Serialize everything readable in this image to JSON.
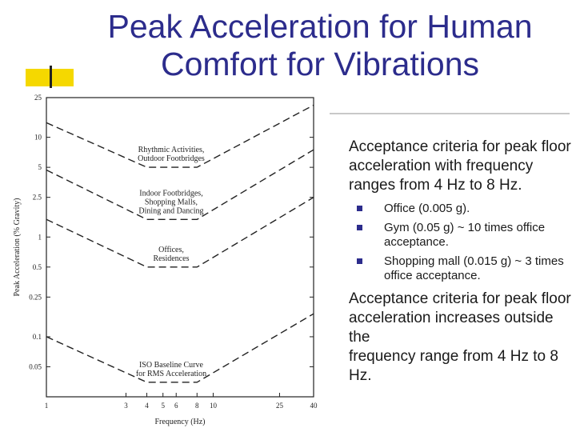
{
  "title": {
    "line1": "Peak Acceleration for Human",
    "line2": "Comfort for Vibrations"
  },
  "colors": {
    "title": "#2c2c8c",
    "accent": "#f5d800",
    "bullet": "#2c2c8c"
  },
  "body": {
    "para1": "Acceptance criteria for peak floor acceleration with frequency ranges from 4 Hz to 8 Hz.",
    "bullets": [
      "Office (0.005 g).",
      "Gym (0.05 g) ~ 10 times office acceptance.",
      "Shopping mall (0.015 g) ~ 3 times office acceptance."
    ],
    "para2_line1": "Acceptance criteria for peak floor acceleration increases outside the",
    "para2_line2": "frequency range from 4 Hz to 8 Hz."
  },
  "chart_data": {
    "type": "line",
    "xlabel": "Frequency (Hz)",
    "ylabel": "Peak Acceleration (% Gravity)",
    "xscale": "log",
    "yscale": "log",
    "xlim": [
      1,
      40
    ],
    "ylim": [
      0.025,
      25
    ],
    "xticks": [
      "1",
      "3",
      "4",
      "5",
      "6",
      "8",
      "10",
      "25",
      "40"
    ],
    "yticks": [
      "25",
      "10",
      "5",
      "2.5",
      "1",
      "0.5",
      "0.25",
      "0.1",
      "0.05"
    ],
    "line_style": "dashed",
    "series": [
      {
        "label": "Rhythmic Activities, Outdoor Footbridges",
        "points": [
          [
            1,
            14
          ],
          [
            4,
            5
          ],
          [
            8,
            5
          ],
          [
            40,
            21
          ]
        ]
      },
      {
        "label": "Indoor Footbridges, Shopping Malls, Dining and Dancing",
        "points": [
          [
            1,
            4.7
          ],
          [
            4,
            1.5
          ],
          [
            8,
            1.5
          ],
          [
            40,
            7.5
          ]
        ]
      },
      {
        "label": "Offices, Residences",
        "points": [
          [
            1,
            1.5
          ],
          [
            4,
            0.5
          ],
          [
            8,
            0.5
          ],
          [
            40,
            2.5
          ]
        ]
      },
      {
        "label": "ISO Baseline Curve for RMS Acceleration",
        "points": [
          [
            1,
            0.1
          ],
          [
            4,
            0.035
          ],
          [
            8,
            0.035
          ],
          [
            40,
            0.17
          ]
        ]
      }
    ]
  }
}
